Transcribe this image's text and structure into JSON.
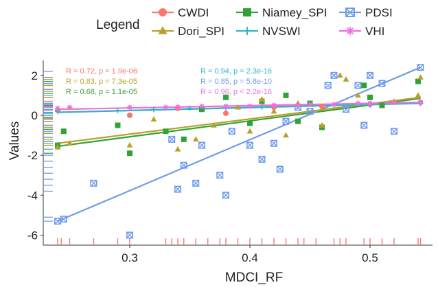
{
  "chart_data": {
    "type": "scatter",
    "title": "",
    "xlabel": "MDCI_RF",
    "ylabel": "Values",
    "xlim": [
      0.228,
      0.552
    ],
    "ylim": [
      -6.5,
      2.75
    ],
    "xticks": [
      0.3,
      0.4,
      0.5
    ],
    "yticks": [
      -6,
      -4,
      -2,
      0,
      2
    ],
    "grid": false,
    "legend": {
      "title": "Legend",
      "placement": "top"
    },
    "rug_x": [
      0.24,
      0.243,
      0.25,
      0.27,
      0.29,
      0.3,
      0.33,
      0.335,
      0.34,
      0.345,
      0.355,
      0.365,
      0.375,
      0.38,
      0.39,
      0.4,
      0.41,
      0.42,
      0.43,
      0.44,
      0.445,
      0.455,
      0.47,
      0.475,
      0.48,
      0.495,
      0.5,
      0.51,
      0.52,
      0.54,
      0.542
    ],
    "series": [
      {
        "name": "CWDI",
        "color": "#F8766D",
        "marker": "circle",
        "stat": "R = 0.72, p = 1.9e-06",
        "fit": [
          [
            0.24,
            0.15
          ],
          [
            0.542,
            0.62
          ]
        ],
        "points": [
          [
            0.24,
            0.25
          ],
          [
            0.3,
            0.0
          ],
          [
            0.34,
            0.35
          ],
          [
            0.38,
            0.1
          ],
          [
            0.42,
            0.4
          ],
          [
            0.46,
            0.45
          ],
          [
            0.5,
            0.55
          ],
          [
            0.542,
            0.65
          ]
        ],
        "rug_y": [
          0.9,
          0.7,
          0.5,
          0.3,
          0.15,
          0.0,
          -0.15,
          -0.3,
          -0.5,
          -0.7,
          -0.9
        ]
      },
      {
        "name": "Niamey_SPI",
        "color": "#31A336",
        "marker": "square",
        "stat": "R = 0.68, p = 1.1e-05",
        "fit": [
          [
            0.24,
            -1.55
          ],
          [
            0.542,
            0.85
          ]
        ],
        "points": [
          [
            0.24,
            -1.5
          ],
          [
            0.245,
            -0.8
          ],
          [
            0.29,
            -0.5
          ],
          [
            0.3,
            -1.9
          ],
          [
            0.33,
            -0.8
          ],
          [
            0.345,
            -1.2
          ],
          [
            0.36,
            0.3
          ],
          [
            0.38,
            0.9
          ],
          [
            0.4,
            -0.4
          ],
          [
            0.41,
            0.7
          ],
          [
            0.43,
            1.0
          ],
          [
            0.44,
            -0.3
          ],
          [
            0.45,
            0.6
          ],
          [
            0.46,
            -0.6
          ],
          [
            0.495,
            1.5
          ],
          [
            0.5,
            0.9
          ],
          [
            0.51,
            0.5
          ],
          [
            0.54,
            1.7
          ]
        ],
        "rug_y": [
          1.9,
          1.7,
          1.5,
          1.3,
          1.1,
          0.9,
          0.7,
          0.5,
          0.3,
          0.1,
          -0.1,
          -0.3,
          -0.5,
          -0.7,
          -0.9,
          -1.1,
          -1.3,
          -1.5,
          -1.7,
          -1.9
        ]
      },
      {
        "name": "PDSI",
        "color": "#6F9BEB",
        "marker": "boxx",
        "stat": "R = 0.85, p = 5.8e-10",
        "fit": [
          [
            0.24,
            -5.3
          ],
          [
            0.542,
            2.4
          ]
        ],
        "points": [
          [
            0.24,
            -5.3
          ],
          [
            0.245,
            -5.2
          ],
          [
            0.27,
            -3.4
          ],
          [
            0.3,
            -6.0
          ],
          [
            0.335,
            -1.2
          ],
          [
            0.34,
            -3.7
          ],
          [
            0.345,
            -2.5
          ],
          [
            0.355,
            -3.4
          ],
          [
            0.36,
            -1.5
          ],
          [
            0.375,
            -3.0
          ],
          [
            0.38,
            -4.0
          ],
          [
            0.385,
            -0.8
          ],
          [
            0.4,
            -1.5
          ],
          [
            0.41,
            -2.2
          ],
          [
            0.42,
            -1.4
          ],
          [
            0.425,
            -2.7
          ],
          [
            0.43,
            -0.3
          ],
          [
            0.44,
            0.4
          ],
          [
            0.45,
            0.2
          ],
          [
            0.465,
            1.5
          ],
          [
            0.47,
            2.0
          ],
          [
            0.48,
            0.3
          ],
          [
            0.49,
            1.5
          ],
          [
            0.495,
            -0.5
          ],
          [
            0.5,
            2.0
          ],
          [
            0.51,
            1.6
          ],
          [
            0.52,
            -0.8
          ],
          [
            0.542,
            2.4
          ]
        ],
        "rug_y": [
          2.2,
          1.9,
          1.6,
          1.3,
          1.0,
          0.7,
          0.4,
          0.1,
          -0.2,
          -0.5,
          -0.8,
          -1.1,
          -1.4,
          -1.7,
          -2.0,
          -2.3,
          -2.6,
          -2.9,
          -3.2,
          -3.5,
          -3.8,
          -5.1,
          -5.3
        ]
      },
      {
        "name": "Dori_SPI",
        "color": "#B8A02A",
        "marker": "triangle",
        "stat": "R = 0.63, p = 7.3e-05",
        "fit": [
          [
            0.24,
            -1.4
          ],
          [
            0.542,
            0.9
          ]
        ],
        "points": [
          [
            0.24,
            -1.6
          ],
          [
            0.25,
            -1.4
          ],
          [
            0.3,
            -1.5
          ],
          [
            0.32,
            -0.2
          ],
          [
            0.34,
            -1.7
          ],
          [
            0.355,
            -1.2
          ],
          [
            0.37,
            -0.5
          ],
          [
            0.39,
            0.4
          ],
          [
            0.4,
            -0.8
          ],
          [
            0.41,
            0.8
          ],
          [
            0.42,
            0.2
          ],
          [
            0.43,
            -1.0
          ],
          [
            0.44,
            0.6
          ],
          [
            0.46,
            -0.5
          ],
          [
            0.475,
            2.0
          ],
          [
            0.48,
            1.8
          ],
          [
            0.49,
            1.0
          ],
          [
            0.52,
            0.7
          ],
          [
            0.54,
            1.0
          ],
          [
            0.542,
            1.9
          ]
        ],
        "rug_y": [
          1.8,
          1.5,
          1.2,
          0.9,
          0.6,
          0.3,
          0.0,
          -0.3,
          -0.6,
          -0.9,
          -1.2,
          -1.5
        ]
      },
      {
        "name": "NVSWI",
        "color": "#2BB8C8",
        "marker": "plus",
        "stat": "R = 0.94, p = 2.3e-16",
        "fit": [
          [
            0.24,
            0.15
          ],
          [
            0.542,
            0.6
          ]
        ],
        "points": [
          [
            0.24,
            0.2
          ],
          [
            0.29,
            0.25
          ],
          [
            0.32,
            0.3
          ],
          [
            0.35,
            0.35
          ],
          [
            0.38,
            0.38
          ],
          [
            0.41,
            0.42
          ],
          [
            0.44,
            0.45
          ],
          [
            0.47,
            0.5
          ],
          [
            0.5,
            0.52
          ],
          [
            0.542,
            0.6
          ]
        ],
        "rug_y": [
          0.6,
          0.45,
          0.3,
          0.15,
          0.0
        ]
      },
      {
        "name": "VHI",
        "color": "#F06DE0",
        "marker": "asterisk",
        "stat": "R = 0.96, p < 2.2e-16",
        "fit": [
          [
            0.24,
            0.3
          ],
          [
            0.542,
            0.65
          ]
        ],
        "points": [
          [
            0.24,
            0.35
          ],
          [
            0.25,
            0.4
          ],
          [
            0.3,
            0.4
          ],
          [
            0.33,
            0.4
          ],
          [
            0.34,
            0.42
          ],
          [
            0.36,
            0.45
          ],
          [
            0.38,
            0.45
          ],
          [
            0.4,
            0.45
          ],
          [
            0.42,
            0.5
          ],
          [
            0.44,
            0.5
          ],
          [
            0.45,
            0.55
          ],
          [
            0.47,
            0.55
          ],
          [
            0.49,
            0.6
          ],
          [
            0.5,
            0.6
          ],
          [
            0.52,
            0.65
          ],
          [
            0.542,
            0.65
          ]
        ],
        "rug_y": [
          0.7,
          0.55,
          0.4,
          0.25
        ]
      }
    ]
  }
}
